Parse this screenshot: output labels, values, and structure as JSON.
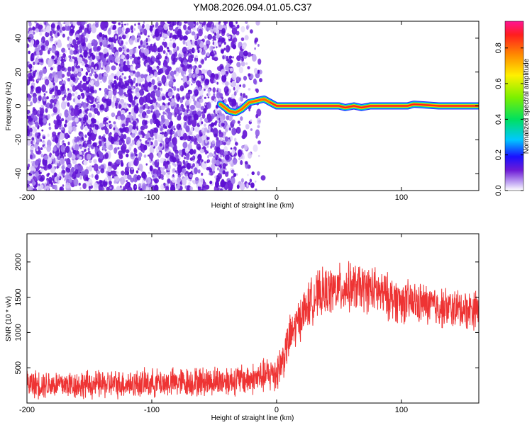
{
  "title": "YM08.2026.094.01.05.C37",
  "chart_data": [
    {
      "type": "heatmap",
      "name": "spectrogram",
      "xlabel": "Height of straight line (km)",
      "ylabel": "Frequency (Hz)",
      "xlim": [
        -200,
        162
      ],
      "ylim": [
        -50,
        50
      ],
      "x_ticks": [
        -200,
        -100,
        0,
        100
      ],
      "y_ticks": [
        -40,
        -20,
        0,
        20,
        40
      ],
      "noise_region_x": [
        -200,
        -20
      ],
      "signal_ridge": [
        {
          "x": -45,
          "y": 1
        },
        {
          "x": -38,
          "y": -3
        },
        {
          "x": -33,
          "y": -4
        },
        {
          "x": -28,
          "y": -2
        },
        {
          "x": -22,
          "y": 2
        },
        {
          "x": -16,
          "y": 3
        },
        {
          "x": -10,
          "y": 4
        },
        {
          "x": -5,
          "y": 2
        },
        {
          "x": 0,
          "y": 0
        },
        {
          "x": 20,
          "y": 0
        },
        {
          "x": 50,
          "y": 0
        },
        {
          "x": 55,
          "y": -1
        },
        {
          "x": 62,
          "y": 0
        },
        {
          "x": 68,
          "y": -1
        },
        {
          "x": 75,
          "y": 0
        },
        {
          "x": 105,
          "y": 0
        },
        {
          "x": 110,
          "y": 1
        },
        {
          "x": 130,
          "y": 0
        },
        {
          "x": 162,
          "y": 0
        }
      ],
      "colorbar": {
        "label": "Normalized spectral amplitude",
        "range": [
          0,
          0.95
        ],
        "ticks": [
          0.0,
          0.2,
          0.4,
          0.6,
          0.8
        ],
        "tick_labels": [
          "0.0",
          "0.2",
          "0.4",
          "0.6",
          "0.8"
        ]
      }
    },
    {
      "type": "line",
      "name": "snr",
      "xlabel": "Height of straight line (km)",
      "ylabel": "SNR (10 * v/v)",
      "xlim": [
        -200,
        162
      ],
      "ylim": [
        0,
        2400
      ],
      "x_ticks": [
        -200,
        -100,
        0,
        100
      ],
      "y_ticks": [
        500,
        1000,
        1500,
        2000
      ],
      "color": "#ee3333",
      "series": [
        {
          "name": "SNR",
          "x": [
            -200,
            -150,
            -100,
            -50,
            -20,
            -10,
            -5,
            0,
            5,
            10,
            20,
            30,
            40,
            50,
            60,
            75,
            90,
            100,
            110,
            120,
            130,
            140,
            150,
            162
          ],
          "y": [
            270,
            260,
            280,
            310,
            340,
            380,
            410,
            440,
            620,
            900,
            1250,
            1500,
            1580,
            1620,
            1640,
            1620,
            1500,
            1440,
            1420,
            1400,
            1360,
            1340,
            1330,
            1330
          ],
          "noise_amplitude": [
            180,
            180,
            180,
            190,
            200,
            220,
            240,
            260,
            260,
            280,
            280,
            300,
            300,
            310,
            310,
            300,
            290,
            280,
            270,
            260,
            260,
            250,
            250,
            250
          ]
        }
      ]
    }
  ]
}
